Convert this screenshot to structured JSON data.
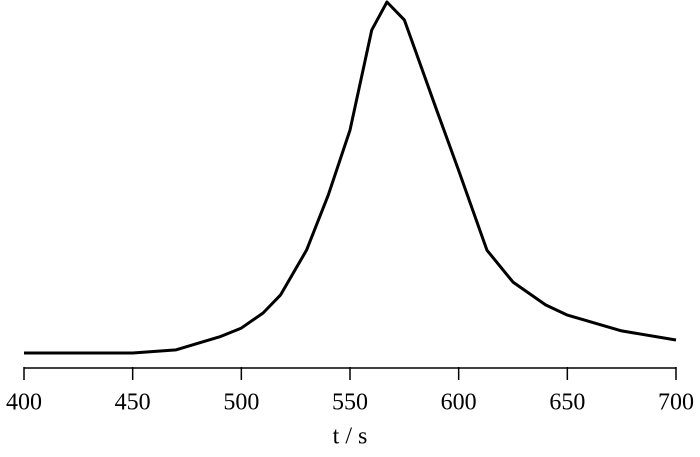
{
  "chart_data": {
    "type": "line",
    "xlabel": "t / s",
    "x": [
      400,
      450,
      470,
      490,
      500,
      510,
      518,
      530,
      540,
      550,
      560,
      567,
      575,
      580,
      590,
      600,
      613,
      625,
      640,
      650,
      675,
      700
    ],
    "series": [
      {
        "color": "#000000",
        "values": [
          0,
          0,
          0.9,
          4.6,
          7.1,
          11.4,
          16.5,
          29.3,
          45,
          63.5,
          92,
          100,
          94.9,
          86.3,
          69,
          52,
          29.3,
          20.2,
          13.7,
          10.8,
          6.3,
          3.7
        ]
      }
    ],
    "xlim": [
      400,
      700
    ],
    "xticks": [
      400,
      450,
      500,
      550,
      600,
      650,
      700
    ],
    "ylim": [
      0,
      100
    ],
    "grid": false
  }
}
